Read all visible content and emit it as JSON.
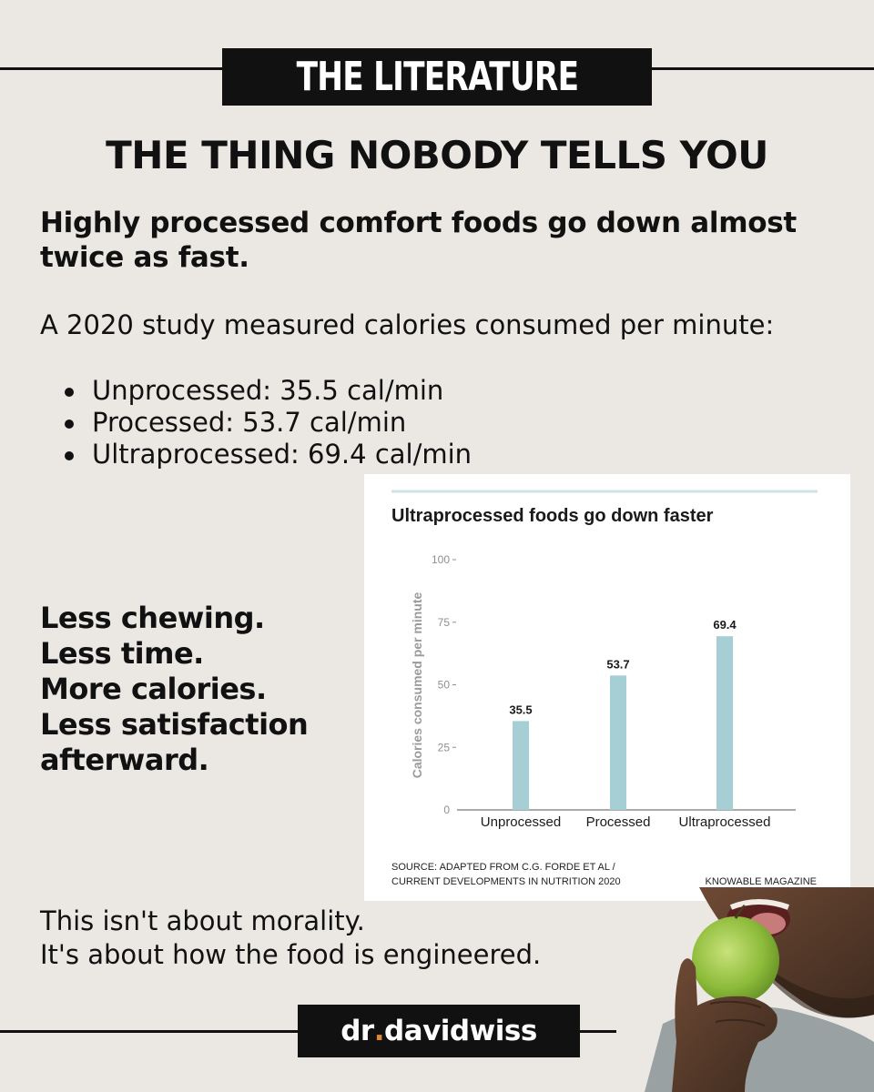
{
  "banner": {
    "title": "THE LITERATURE"
  },
  "headline": "THE THING NOBODY TELLS YOU",
  "subhead": "Highly processed comfort foods go down almost twice as fast.",
  "intro": "A 2020 study measured calories consumed per minute:",
  "bullets": [
    "Unprocessed: 35.5 cal/min",
    "Processed: 53.7 cal/min",
    "Ultraprocessed: 69.4 cal/min"
  ],
  "punchlines": [
    "Less chewing.",
    "Less time.",
    "More calories.",
    "Less satisfaction afterward."
  ],
  "closing": [
    "This isn't about morality.",
    "It's about how the food is engineered."
  ],
  "brand": {
    "prefix": "dr",
    "dot": ".",
    "name": "davidwiss"
  },
  "colors": {
    "background": "#ebe8e4",
    "bar": "#a6cfd5",
    "accent_dot": "#e08a2c",
    "chart_rule": "#cfe3e6"
  },
  "chart_data": {
    "type": "bar",
    "title": "Ultraprocessed foods go down faster",
    "ylabel": "Calories consumed per minute",
    "xlabel": "",
    "categories": [
      "Unprocessed",
      "Processed",
      "Ultraprocessed"
    ],
    "values": [
      35.5,
      53.7,
      69.4
    ],
    "value_labels": [
      "35.5",
      "53.7",
      "69.4"
    ],
    "ylim": [
      0,
      100
    ],
    "yticks": [
      0,
      25,
      50,
      75,
      100
    ],
    "grid": false,
    "source_lines": [
      "SOURCE: ADAPTED FROM C.G. FORDE ET AL /",
      "CURRENT DEVELOPMENTS IN NUTRITION 2020"
    ],
    "credit": "KNOWABLE MAGAZINE"
  },
  "photo": {
    "icon": "person-eating-apple-photo"
  }
}
